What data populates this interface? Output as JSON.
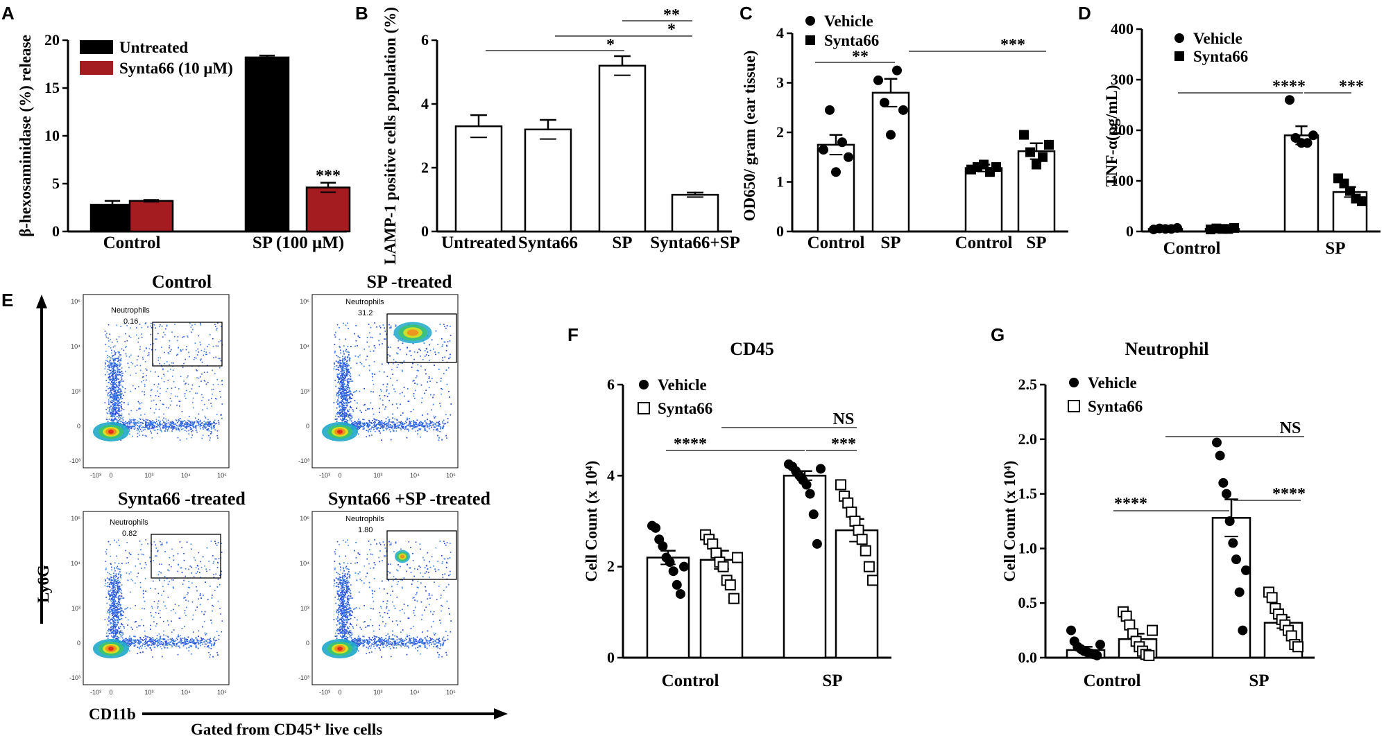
{
  "chart_data": [
    {
      "panel": "A",
      "type": "bar",
      "ylabel": "β-hexosaminidase (%) release",
      "ylim": [
        0,
        20
      ],
      "yticks": [
        0,
        5,
        10,
        15,
        20
      ],
      "categories": [
        "Control",
        "SP (100 μM)"
      ],
      "series": [
        {
          "name": "Untreated",
          "color": "#000000",
          "values": [
            2.8,
            18.2
          ],
          "errors": [
            0.4,
            0.2
          ]
        },
        {
          "name": "Synta66 (10 μM)",
          "color": "#a51c20",
          "values": [
            3.2,
            4.6
          ],
          "errors": [
            0.1,
            0.5
          ]
        }
      ],
      "annotations": [
        "***"
      ]
    },
    {
      "panel": "B",
      "type": "bar",
      "ylabel": "LAMP-1 positive cells population (%)",
      "ylim": [
        0,
        6
      ],
      "yticks": [
        0,
        2,
        4,
        6
      ],
      "categories": [
        "Untreated",
        "Synta66",
        "SP",
        "Synta66+SP"
      ],
      "values": [
        3.3,
        3.2,
        5.2,
        1.15
      ],
      "errors": [
        0.35,
        0.3,
        0.3,
        0.07
      ],
      "annotations": [
        "*",
        "*",
        "**"
      ]
    },
    {
      "panel": "C",
      "type": "bar",
      "ylabel": "OD650/ gram (ear tissue)",
      "ylim": [
        0,
        4
      ],
      "yticks": [
        0,
        1,
        2,
        3,
        4
      ],
      "legend": [
        "Vehicle",
        "Synta66"
      ],
      "categories": [
        "Control",
        "SP",
        "Control",
        "SP"
      ],
      "values": [
        1.75,
        2.8,
        1.28,
        1.62
      ],
      "errors": [
        0.2,
        0.28,
        0.07,
        0.16
      ],
      "points": [
        [
          1.65,
          2.45,
          1.2,
          1.8,
          1.5
        ],
        [
          3.05,
          2.6,
          1.95,
          3.25,
          2.45
        ],
        [
          1.25,
          1.3,
          1.35,
          1.2,
          1.3
        ],
        [
          1.95,
          1.6,
          1.35,
          1.5,
          1.75
        ]
      ],
      "annotations": [
        "**",
        "***"
      ]
    },
    {
      "panel": "D",
      "type": "bar",
      "ylabel": "TNF-α(pg/mL)",
      "ylim": [
        0,
        400
      ],
      "yticks": [
        0,
        100,
        200,
        300,
        400
      ],
      "legend": [
        "Vehicle",
        "Synta66"
      ],
      "categories": [
        "Control",
        "SP"
      ],
      "series": [
        {
          "name": "Vehicle",
          "values": [
            5,
            190
          ],
          "errors": [
            1,
            18
          ],
          "points": [
            [
              4,
              6,
              5,
              5,
              7
            ],
            [
              260,
              185,
              175,
              175,
              190
            ]
          ]
        },
        {
          "name": "Synta66",
          "values": [
            5,
            78
          ],
          "errors": [
            1,
            10
          ],
          "points": [
            [
              4,
              6,
              5,
              5,
              7
            ],
            [
              105,
              95,
              80,
              65,
              60
            ]
          ]
        }
      ],
      "annotations": [
        "****",
        "***"
      ]
    },
    {
      "panel": "F",
      "type": "bar",
      "title": "CD45",
      "ylabel": "Cell Count (x 10⁴)",
      "ylim": [
        0,
        6
      ],
      "yticks": [
        0,
        2,
        4,
        6
      ],
      "legend": [
        "Vehicle",
        "Synta66"
      ],
      "categories": [
        "Control",
        "SP"
      ],
      "series": [
        {
          "name": "Vehicle",
          "values": [
            2.2,
            4.0
          ],
          "errors": [
            0.15,
            0.1
          ],
          "points": [
            [
              2.9,
              2.85,
              2.6,
              2.45,
              2.2,
              2.1,
              1.9,
              1.6,
              1.4,
              2.0
            ],
            [
              4.25,
              4.2,
              4.1,
              4.0,
              3.9,
              3.8,
              3.6,
              3.15,
              2.5,
              4.15
            ]
          ]
        },
        {
          "name": "Synta66",
          "values": [
            2.15,
            2.8
          ],
          "errors": [
            0.2,
            0.25
          ],
          "points": [
            [
              2.7,
              2.6,
              2.5,
              2.3,
              2.1,
              2.0,
              1.7,
              1.6,
              1.3,
              2.2
            ],
            [
              3.8,
              3.55,
              3.4,
              3.2,
              3.0,
              2.8,
              2.6,
              2.35,
              2.0,
              1.7
            ]
          ]
        }
      ],
      "annotations": [
        "NS",
        "****",
        "***"
      ]
    },
    {
      "panel": "G",
      "type": "bar",
      "title": "Neutrophil",
      "ylabel": "Cell Count (x 10⁴)",
      "ylim": [
        0,
        2.5
      ],
      "yticks": [
        0.0,
        0.5,
        1.0,
        1.5,
        2.0,
        2.5
      ],
      "legend": [
        "Vehicle",
        "Synta66"
      ],
      "categories": [
        "Control",
        "SP"
      ],
      "series": [
        {
          "name": "Vehicle",
          "values": [
            0.07,
            1.28
          ],
          "errors": [
            0.03,
            0.17
          ],
          "points": [
            [
              0.25,
              0.15,
              0.1,
              0.08,
              0.06,
              0.05,
              0.04,
              0.03,
              0.02,
              0.12
            ],
            [
              1.97,
              1.85,
              1.6,
              1.5,
              1.25,
              1.05,
              0.9,
              0.6,
              0.25,
              0.8
            ]
          ]
        },
        {
          "name": "Synta66",
          "values": [
            0.17,
            0.32
          ],
          "errors": [
            0.05,
            0.05
          ],
          "points": [
            [
              0.42,
              0.38,
              0.3,
              0.22,
              0.15,
              0.1,
              0.06,
              0.03,
              0.02,
              0.25
            ],
            [
              0.6,
              0.55,
              0.45,
              0.4,
              0.35,
              0.3,
              0.25,
              0.2,
              0.12,
              0.1
            ]
          ]
        }
      ],
      "annotations": [
        "NS",
        "****",
        "****"
      ]
    }
  ],
  "panel_labels": [
    "A",
    "B",
    "C",
    "D",
    "E",
    "F",
    "G"
  ],
  "flow": {
    "y_axis_label": "Ly6G",
    "x_axis_label": "CD11b",
    "gated_note": "Gated from CD45⁺ live cells",
    "gate_name": "Neutrophils",
    "tick_labels": [
      "10⁵",
      "10⁴",
      "10³",
      "0",
      "-10³"
    ],
    "plots": [
      {
        "title": "Control",
        "gate_value": "0.16"
      },
      {
        "title": "SP -treated",
        "gate_value": "31.2"
      },
      {
        "title": "Synta66 -treated",
        "gate_value": "0.82"
      },
      {
        "title": "Synta66 +SP  -treated",
        "gate_value": "1.80"
      }
    ]
  }
}
